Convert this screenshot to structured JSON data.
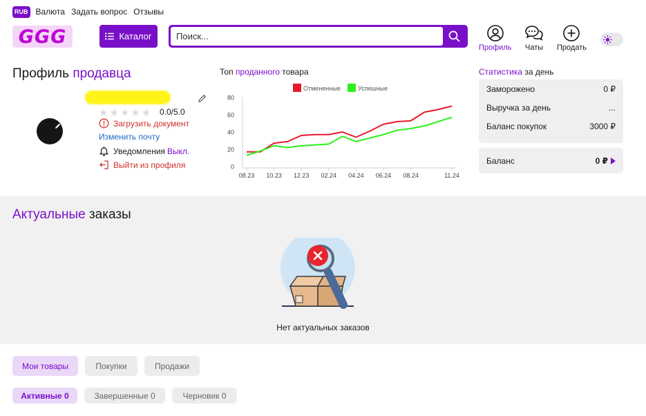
{
  "topbar": {
    "currency": "RUB",
    "links": [
      "Валюта",
      "Задать вопрос",
      "Отзывы"
    ]
  },
  "header": {
    "logo": "GGG",
    "catalog_label": "Каталог",
    "search_placeholder": "Поиск...",
    "nav": [
      "Профиль",
      "Чаты",
      "Продать"
    ]
  },
  "profile": {
    "title_part1": "Профиль",
    "title_part2": "продавца",
    "rating": "0.0/5.0",
    "upload_document": "Загрузить документ",
    "change_email": "Изменить почту",
    "notifications_label": "Уведомления",
    "notifications_value": "Выкл.",
    "logout": "Выйти из профиля"
  },
  "chart_title": {
    "part1": "Топ",
    "part2": "проданного",
    "part3": "товара"
  },
  "chart_data": {
    "type": "line",
    "title": "Топ проданного товара",
    "categories": [
      "08.23",
      "09.23",
      "10.23",
      "11.23",
      "12.23",
      "01.24",
      "02.24",
      "03.24",
      "04.24",
      "05.24",
      "06.24",
      "07.24",
      "08.24",
      "09.24",
      "10.24",
      "11.24"
    ],
    "x_tick_labels": [
      "08.23",
      "10.23",
      "12.23",
      "02.24",
      "04.24",
      "06.24",
      "08.24",
      "11.24"
    ],
    "ylim": [
      0,
      80
    ],
    "y_ticks": [
      0,
      20,
      40,
      60,
      80
    ],
    "grid": false,
    "legend_position": "top-center",
    "series": [
      {
        "name": "Отмененные",
        "color": "#e8192c",
        "values": [
          17,
          17,
          27,
          29,
          36,
          37,
          37,
          40,
          34,
          41,
          49,
          52,
          53,
          63,
          66,
          70
        ]
      },
      {
        "name": "Успешные",
        "color": "#2ef01a",
        "values": [
          13,
          18,
          24,
          22,
          24,
          25,
          26,
          35,
          29,
          33,
          37,
          42,
          44,
          47,
          52,
          57
        ]
      }
    ]
  },
  "stats": {
    "title_part1": "Статистика",
    "title_part2": "за день",
    "rows": [
      {
        "label": "Заморожено",
        "value": "0 ₽"
      },
      {
        "label": "Выручка за день",
        "value": "..."
      },
      {
        "label": "Баланс покупок",
        "value": "3000 ₽"
      }
    ],
    "balance_label": "Баланс",
    "balance_value": "0 ₽"
  },
  "orders": {
    "title_part1": "Актуальные",
    "title_part2": "заказы",
    "empty_text": "Нет актуальных заказов"
  },
  "tabs": [
    "Мои товары",
    "Покупки",
    "Продажи"
  ],
  "filters": [
    "Активные 0",
    "Завершенные 0",
    "Черновик 0"
  ],
  "colors": {
    "accent": "#7a0fc9",
    "danger": "#d0312d",
    "link": "#2167c9"
  }
}
